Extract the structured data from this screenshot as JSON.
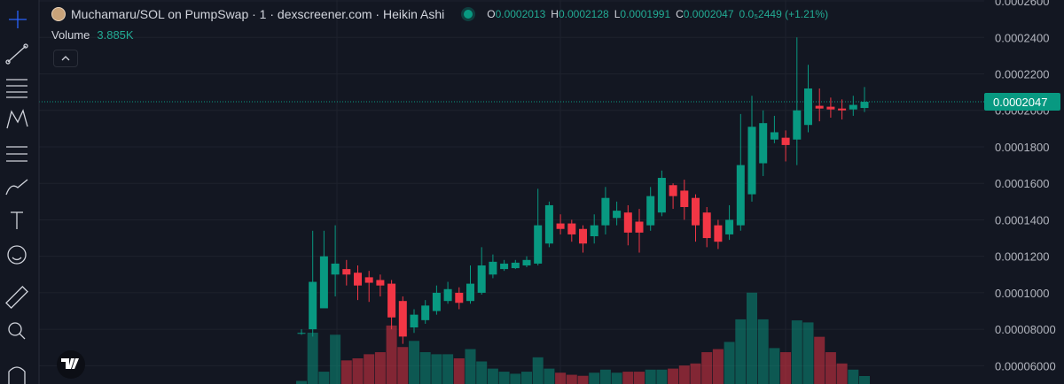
{
  "header": {
    "title": "Muchamaru/SOL on PumpSwap · 1 · dexscreener.com · Heikin Ashi",
    "o_label": "O",
    "h_label": "H",
    "l_label": "L",
    "c_label": "C",
    "change": "0.0₅2449 (+1.21%)"
  },
  "chart_data": {
    "type": "candlestick",
    "up_color": "#089981",
    "down_color": "#f23645",
    "ylim": [
      5e-05,
      0.0002605
    ],
    "yticks": [
      {
        "value": 0.00026,
        "label": "0.0002600"
      },
      {
        "value": 0.00024,
        "label": "0.0002400"
      },
      {
        "value": 0.00022,
        "label": "0.0002200"
      },
      {
        "value": 0.0002,
        "label": "0.0002000"
      },
      {
        "value": 0.00018,
        "label": "0.0001800"
      },
      {
        "value": 0.00016,
        "label": "0.0001600"
      },
      {
        "value": 0.00014,
        "label": "0.0001400"
      },
      {
        "value": 0.00012,
        "label": "0.0001200"
      },
      {
        "value": 0.0001,
        "label": "0.0001000"
      },
      {
        "value": 8e-05,
        "label": "0.00008000"
      },
      {
        "value": 6e-05,
        "label": "0.00006000"
      }
    ],
    "grid": true,
    "open": [
      7.8e-05,
      8e-05,
      9.15e-05,
      0.00011,
      0.000113,
      0.000111,
      0.0001085,
      0.000107,
      0.000105,
      9.55e-05,
      8.1e-05,
      8.5e-05,
      9e-05,
      9.55e-05,
      0.0001,
      9.55e-05,
      0.0001,
      0.00011,
      0.000113,
      0.0001135,
      0.000115,
      0.000116,
      0.000127,
      0.000138,
      0.000138,
      0.000135,
      0.000131,
      0.000137,
      0.000141,
      0.000144,
      0.000139,
      0.000137,
      0.000144,
      0.000159,
      0.000156,
      0.000152,
      0.000144,
      0.000137,
      0.000132,
      0.000137,
      0.000154,
      0.000171,
      0.000184,
      0.000185,
      0.000184,
      0.000192,
      0.0002025,
      0.000202,
      0.000201,
      0.0002005,
      0.0002013
    ],
    "high": [
      8e-05,
      0.000134,
      0.000134,
      0.000137,
      0.000118,
      0.000115,
      0.000112,
      0.00011,
      0.000107,
      9.8e-05,
      9.1e-05,
      9.6e-05,
      0.000104,
      0.000106,
      0.000103,
      0.000115,
      0.000125,
      0.000121,
      0.000118,
      0.000118,
      0.00012,
      0.000157,
      0.00015,
      0.000143,
      0.00014,
      0.000137,
      0.000143,
      0.000158,
      0.00015,
      0.000148,
      0.000146,
      0.000158,
      0.000167,
      0.00016,
      0.000162,
      0.000154,
      0.000147,
      0.00014,
      0.000148,
      0.000198,
      0.000208,
      0.0002,
      0.000197,
      0.000189,
      0.00024,
      0.000225,
      0.000212,
      0.000207,
      0.000206,
      0.000208,
      0.0002128
    ],
    "low": [
      7.7e-05,
      7.6e-05,
      9.2e-05,
      9.8e-05,
      0.000104,
      9.6e-05,
      9.5e-05,
      9.8e-05,
      8e-05,
      7.2e-05,
      7.8e-05,
      8.3e-05,
      8.8e-05,
      9.4e-05,
      9.1e-05,
      9.4e-05,
      9.9e-05,
      0.000108,
      0.000112,
      0.000113,
      0.000114,
      0.000115,
      0.000125,
      0.000132,
      0.000128,
      0.000122,
      0.000127,
      0.000132,
      0.000137,
      0.000126,
      0.000122,
      0.000134,
      0.000142,
      0.000146,
      0.00014,
      0.000128,
      0.000125,
      0.000124,
      0.000129,
      0.000134,
      0.00015,
      0.000164,
      0.000182,
      0.000172,
      0.00017,
      0.000188,
      0.000194,
      0.000196,
      0.000195,
      0.000197,
      0.0001991
    ],
    "close": [
      7.8e-05,
      0.000106,
      0.00012,
      0.000116,
      0.00011,
      0.000104,
      0.0001055,
      0.000104,
      8.65e-05,
      7.6e-05,
      8.8e-05,
      9.3e-05,
      0.0001,
      0.000102,
      9.45e-05,
      0.000105,
      0.000115,
      0.000117,
      0.000116,
      0.0001165,
      0.000118,
      0.000137,
      0.000148,
      0.000135,
      0.000132,
      0.000127,
      0.000137,
      0.000152,
      0.000145,
      0.000133,
      0.000133,
      0.000153,
      0.000163,
      0.000153,
      0.000147,
      0.000137,
      0.00013,
      0.000128,
      0.00014,
      0.00017,
      0.000191,
      0.000193,
      0.000188,
      0.000181,
      0.0002,
      0.000212,
      0.000201,
      0.0002005,
      0.0002,
      0.000203,
      0.0002047
    ],
    "volume_title": "Volume",
    "volume_value_label": "3.885K",
    "volume": [
      1.5,
      25,
      6,
      24,
      11.5,
      12.5,
      14.5,
      15.5,
      28.5,
      18,
      21,
      15.5,
      14.5,
      14.5,
      12.5,
      17,
      11,
      7.5,
      6,
      5,
      6,
      13,
      7.5,
      5.5,
      4.5,
      4,
      5.5,
      7,
      5.5,
      6,
      6,
      7,
      7,
      7.5,
      9,
      10,
      15.5,
      17,
      20.5,
      31.5,
      44.5,
      31.5,
      17.5,
      15.5,
      31,
      30,
      23,
      15.5,
      10,
      7,
      3.885
    ]
  }
}
